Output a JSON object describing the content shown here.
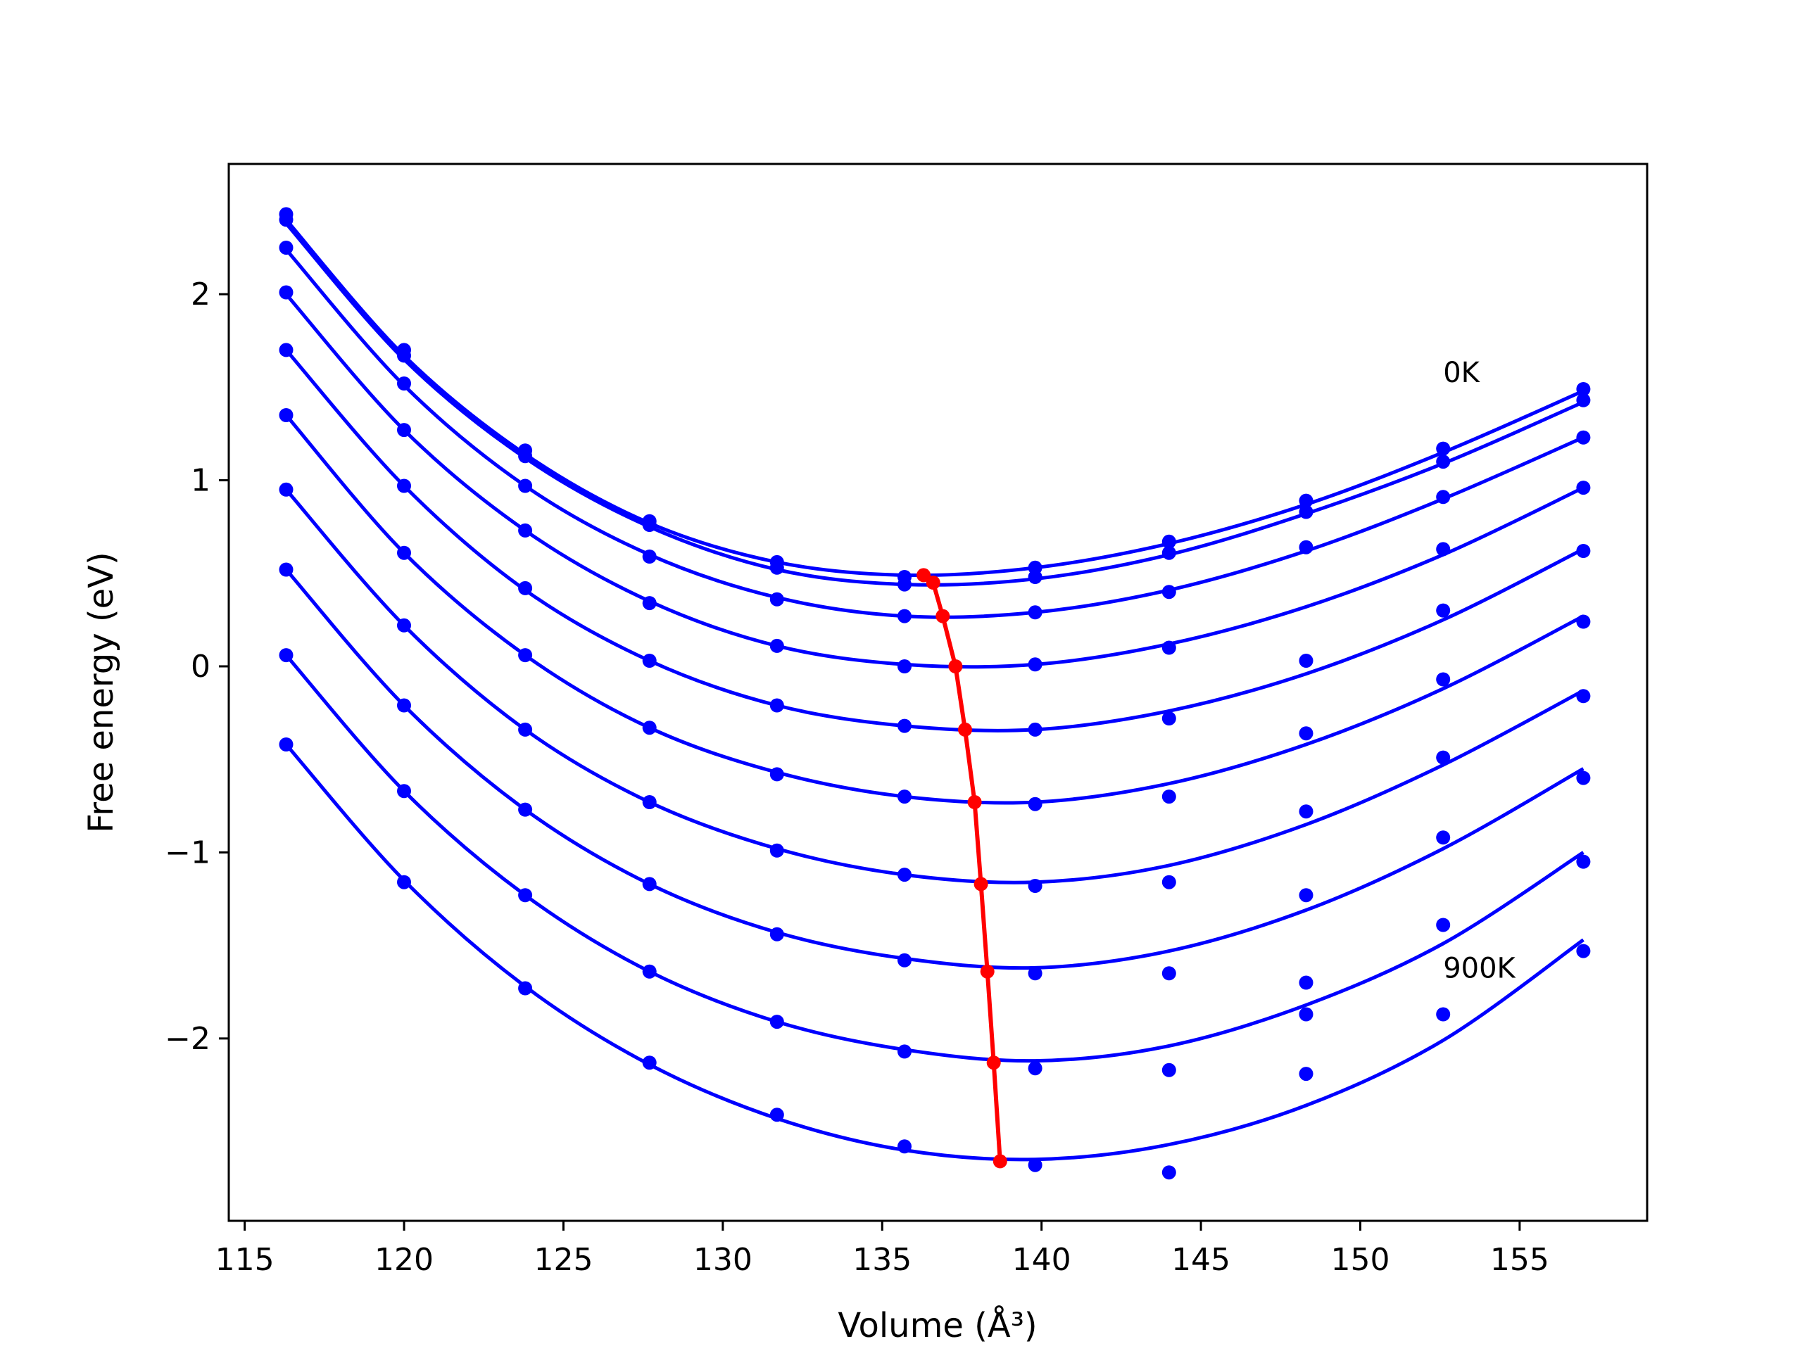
{
  "chart_data": {
    "type": "line",
    "xlabel": "Volume (Å³)",
    "ylabel": "Free energy (eV)",
    "xlim": [
      114.5,
      159
    ],
    "ylim": [
      -2.98,
      2.7
    ],
    "xticks": [
      115,
      120,
      125,
      130,
      135,
      140,
      145,
      150,
      155
    ],
    "yticks": [
      -2,
      -1,
      0,
      1,
      2
    ],
    "xtick_labels": [
      "115",
      "120",
      "125",
      "130",
      "135",
      "140",
      "145",
      "150",
      "155"
    ],
    "ytick_labels": [
      "−2",
      "−1",
      "0",
      "1",
      "2"
    ],
    "grid": false,
    "legend": "none",
    "annotations": [
      {
        "text": "0K",
        "x": 152.6,
        "y": 1.58
      },
      {
        "text": "900K",
        "x": 152.6,
        "y": -1.62
      }
    ],
    "colors": {
      "curves": "#0000ff",
      "minimum_line": "#ff0000",
      "axes": "#000000"
    },
    "volumes": [
      116.3,
      120.0,
      123.8,
      127.7,
      131.7,
      135.7,
      139.8,
      144.0,
      148.3,
      152.6,
      157.0
    ],
    "series": [
      {
        "points": [
          2.43,
          1.7,
          1.16,
          0.78,
          0.56,
          0.48,
          0.53,
          0.67,
          0.89,
          1.17,
          1.49
        ],
        "fit": [
          2.4,
          1.67,
          1.14,
          0.77,
          0.56,
          0.49,
          0.53,
          0.66,
          0.87,
          1.15,
          1.48
        ]
      },
      {
        "points": [
          2.4,
          1.67,
          1.13,
          0.76,
          0.53,
          0.44,
          0.48,
          0.61,
          0.83,
          1.1,
          1.43
        ],
        "fit": [
          2.38,
          1.65,
          1.12,
          0.75,
          0.52,
          0.44,
          0.47,
          0.6,
          0.82,
          1.09,
          1.42
        ]
      },
      {
        "points": [
          2.25,
          1.52,
          0.97,
          0.59,
          0.36,
          0.27,
          0.29,
          0.4,
          0.64,
          0.91,
          1.23
        ],
        "fit": [
          2.24,
          1.51,
          0.97,
          0.6,
          0.37,
          0.27,
          0.29,
          0.41,
          0.62,
          0.9,
          1.23
        ]
      },
      {
        "points": [
          2.01,
          1.27,
          0.73,
          0.34,
          0.11,
          0.0,
          0.01,
          0.1,
          0.03,
          0.63,
          0.96
        ],
        "fit": [
          2.0,
          1.27,
          0.73,
          0.35,
          0.11,
          0.01,
          0.01,
          0.12,
          0.32,
          0.6,
          0.96
        ]
      },
      {
        "points": [
          1.7,
          0.97,
          0.42,
          0.03,
          -0.21,
          -0.32,
          -0.34,
          -0.28,
          -0.36,
          0.3,
          0.62
        ],
        "fit": [
          1.7,
          0.97,
          0.41,
          0.03,
          -0.21,
          -0.32,
          -0.34,
          -0.24,
          -0.04,
          0.25,
          0.63
        ]
      },
      {
        "points": [
          1.35,
          0.61,
          0.06,
          -0.33,
          -0.58,
          -0.7,
          -0.74,
          -0.7,
          -0.78,
          -0.07,
          0.24
        ],
        "fit": [
          1.35,
          0.61,
          0.06,
          -0.33,
          -0.57,
          -0.7,
          -0.73,
          -0.63,
          -0.42,
          -0.12,
          0.27
        ]
      },
      {
        "points": [
          0.95,
          0.22,
          -0.34,
          -0.73,
          -0.99,
          -1.12,
          -1.18,
          -1.16,
          -1.23,
          -0.49,
          -0.16
        ],
        "fit": [
          0.95,
          0.22,
          -0.34,
          -0.73,
          -0.98,
          -1.12,
          -1.16,
          -1.07,
          -0.85,
          -0.53,
          -0.13
        ]
      },
      {
        "points": [
          0.52,
          -0.21,
          -0.77,
          -1.17,
          -1.44,
          -1.58,
          -1.65,
          -1.65,
          -1.7,
          -0.92,
          -0.6
        ],
        "fit": [
          0.52,
          -0.21,
          -0.77,
          -1.17,
          -1.43,
          -1.57,
          -1.62,
          -1.53,
          -1.31,
          -0.98,
          -0.55
        ]
      },
      {
        "points": [
          0.06,
          -0.67,
          -1.23,
          -1.64,
          -1.91,
          -2.07,
          -2.16,
          -2.17,
          -2.19,
          -1.39,
          -1.05
        ],
        "fit": [
          0.06,
          -0.67,
          -1.23,
          -1.64,
          -1.91,
          -2.06,
          -2.12,
          -2.04,
          -1.82,
          -1.49,
          -1.0
        ]
      },
      {
        "points": [
          -0.42,
          -1.16,
          -1.73,
          -2.13,
          -2.41,
          -2.58,
          -2.68,
          -2.72,
          -1.87,
          -1.87,
          -1.53
        ],
        "fit": [
          -0.42,
          -1.15,
          -1.72,
          -2.14,
          -2.43,
          -2.6,
          -2.65,
          -2.57,
          -2.36,
          -2.01,
          -1.47
        ]
      }
    ],
    "minimum_line": {
      "x": [
        136.3,
        136.6,
        136.9,
        137.3,
        137.6,
        137.9,
        138.1,
        138.3,
        138.5,
        138.7
      ],
      "y": [
        0.49,
        0.45,
        0.27,
        0.0,
        -0.34,
        -0.73,
        -1.17,
        -1.64,
        -2.13,
        -2.66
      ]
    }
  }
}
